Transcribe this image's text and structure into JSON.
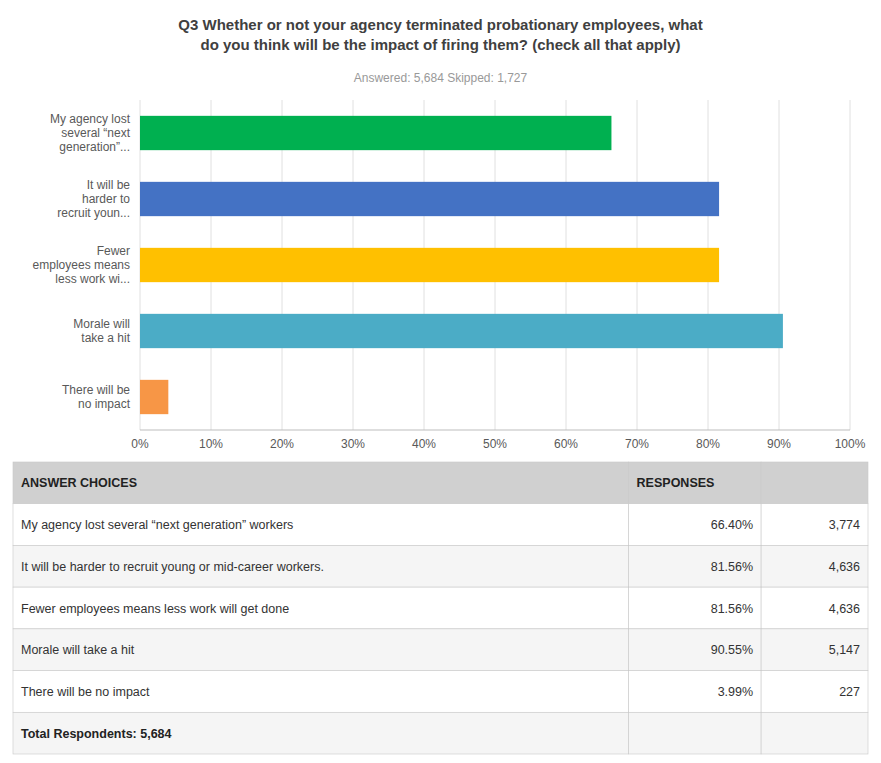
{
  "chart_data": [
    {
      "type": "bar",
      "orientation": "horizontal",
      "title": "Q3 Whether or not your agency terminated probationary employees, what\ndo you think will be the impact of firing them? (check all that apply)",
      "subtitle": "Answered: 5,684     Skipped: 1,727",
      "categories": [
        "My agency lost\nseveral “next\ngeneration”...",
        "It will be\nharder to\nrecruit youn...",
        "Fewer\nemployees means\nless work wi...",
        "Morale will\ntake a hit",
        "There will be\nno impact"
      ],
      "values": [
        66.4,
        81.56,
        81.56,
        90.55,
        3.99
      ],
      "colors": [
        "#00b050",
        "#4472c4",
        "#ffc000",
        "#4bacc6",
        "#f79646"
      ],
      "xlim": [
        0,
        100
      ],
      "xticks": [
        {
          "value": 0,
          "label": "0%"
        },
        {
          "value": 10,
          "label": "10%"
        },
        {
          "value": 20,
          "label": "20%"
        },
        {
          "value": 30,
          "label": "30%"
        },
        {
          "value": 40,
          "label": "40%"
        },
        {
          "value": 50,
          "label": "50%"
        },
        {
          "value": 60,
          "label": "60%"
        },
        {
          "value": 70,
          "label": "70%"
        },
        {
          "value": 80,
          "label": "80%"
        },
        {
          "value": 90,
          "label": "90%"
        },
        {
          "value": 100,
          "label": "100%"
        }
      ],
      "grid": true
    },
    {
      "type": "table",
      "columns": [
        "ANSWER CHOICES",
        "RESPONSES"
      ],
      "rows": [
        [
          "My agency lost several “next generation” workers",
          "66.40%",
          "3,774"
        ],
        [
          "It will be harder to recruit young or mid-career workers.",
          "81.56%",
          "4,636"
        ],
        [
          "Fewer employees means less work will get done",
          "81.56%",
          "4,636"
        ],
        [
          "Morale will take a hit",
          "90.55%",
          "5,147"
        ],
        [
          "There will be no impact",
          "3.99%",
          "227"
        ],
        [
          "Total Respondents: 5,684"
        ]
      ]
    }
  ]
}
